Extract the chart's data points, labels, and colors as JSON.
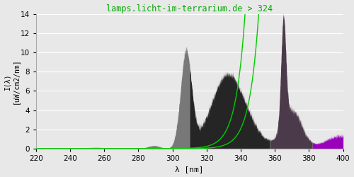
{
  "title": "lamps.licht-im-terrarium.de > 324",
  "xlabel": "λ [nm]",
  "ylabel": "I(λ)\n[uW/cm2/nm]",
  "xlim": [
    220,
    400
  ],
  "ylim": [
    0,
    14
  ],
  "xticks": [
    220,
    240,
    260,
    280,
    300,
    320,
    340,
    360,
    380,
    400
  ],
  "yticks": [
    0,
    2,
    4,
    6,
    8,
    10,
    12,
    14
  ],
  "bg_color": "#e8e8e8",
  "grid_color": "#ffffff",
  "title_color": "#00aa00",
  "color_uvb_light": "#888888",
  "color_uvb_dark": "#2a2a2a",
  "color_uva_purple": "#554455",
  "color_vis_purple": "#aa00bb"
}
